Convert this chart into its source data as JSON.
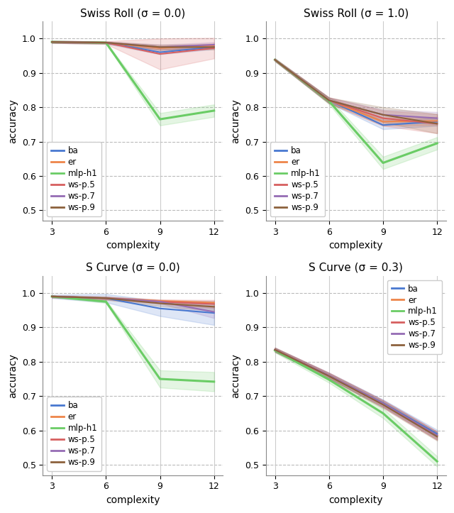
{
  "x": [
    3,
    6,
    9,
    12
  ],
  "plots": [
    {
      "title": "Swiss Roll (σ = 0.0)",
      "legend_loc": "lower left",
      "lines": {
        "ba": {
          "mean": [
            0.99,
            0.988,
            0.96,
            0.975
          ],
          "std": [
            0.003,
            0.003,
            0.006,
            0.006
          ]
        },
        "er": {
          "mean": [
            0.99,
            0.988,
            0.972,
            0.98
          ],
          "std": [
            0.003,
            0.003,
            0.006,
            0.006
          ]
        },
        "mlp-h1": {
          "mean": [
            0.99,
            0.988,
            0.765,
            0.79
          ],
          "std": [
            0.002,
            0.002,
            0.018,
            0.018
          ]
        },
        "ws-p.5": {
          "mean": [
            0.99,
            0.988,
            0.955,
            0.972
          ],
          "std": [
            0.003,
            0.004,
            0.045,
            0.03
          ]
        },
        "ws-p.7": {
          "mean": [
            0.99,
            0.988,
            0.975,
            0.982
          ],
          "std": [
            0.003,
            0.003,
            0.007,
            0.007
          ]
        },
        "ws-p.9": {
          "mean": [
            0.99,
            0.988,
            0.975,
            0.975
          ],
          "std": [
            0.003,
            0.003,
            0.007,
            0.007
          ]
        }
      },
      "ylim": [
        0.47,
        1.05
      ],
      "yticks": [
        0.5,
        0.6,
        0.7,
        0.8,
        0.9,
        1.0
      ]
    },
    {
      "title": "Swiss Roll (σ = 1.0)",
      "legend_loc": "lower left",
      "lines": {
        "ba": {
          "mean": [
            0.938,
            0.82,
            0.748,
            0.758
          ],
          "std": [
            0.003,
            0.008,
            0.012,
            0.012
          ]
        },
        "er": {
          "mean": [
            0.938,
            0.82,
            0.758,
            0.76
          ],
          "std": [
            0.003,
            0.008,
            0.012,
            0.012
          ]
        },
        "mlp-h1": {
          "mean": [
            0.938,
            0.818,
            0.638,
            0.695
          ],
          "std": [
            0.003,
            0.009,
            0.018,
            0.018
          ]
        },
        "ws-p.5": {
          "mean": [
            0.938,
            0.82,
            0.768,
            0.752
          ],
          "std": [
            0.004,
            0.009,
            0.022,
            0.028
          ]
        },
        "ws-p.7": {
          "mean": [
            0.938,
            0.82,
            0.778,
            0.768
          ],
          "std": [
            0.004,
            0.008,
            0.015,
            0.018
          ]
        },
        "ws-p.9": {
          "mean": [
            0.938,
            0.82,
            0.778,
            0.752
          ],
          "std": [
            0.004,
            0.008,
            0.022,
            0.028
          ]
        }
      },
      "ylim": [
        0.47,
        1.05
      ],
      "yticks": [
        0.5,
        0.6,
        0.7,
        0.8,
        0.9,
        1.0
      ]
    },
    {
      "title": "S Curve (σ = 0.0)",
      "legend_loc": "lower left",
      "lines": {
        "ba": {
          "mean": [
            0.99,
            0.985,
            0.955,
            0.942
          ],
          "std": [
            0.005,
            0.012,
            0.022,
            0.035
          ]
        },
        "er": {
          "mean": [
            0.99,
            0.985,
            0.977,
            0.972
          ],
          "std": [
            0.003,
            0.003,
            0.004,
            0.004
          ]
        },
        "mlp-h1": {
          "mean": [
            0.99,
            0.975,
            0.75,
            0.742
          ],
          "std": [
            0.002,
            0.004,
            0.025,
            0.028
          ]
        },
        "ws-p.5": {
          "mean": [
            0.99,
            0.985,
            0.975,
            0.968
          ],
          "std": [
            0.003,
            0.004,
            0.006,
            0.012
          ]
        },
        "ws-p.7": {
          "mean": [
            0.99,
            0.985,
            0.975,
            0.945
          ],
          "std": [
            0.003,
            0.003,
            0.005,
            0.018
          ]
        },
        "ws-p.9": {
          "mean": [
            0.99,
            0.985,
            0.97,
            0.96
          ],
          "std": [
            0.003,
            0.005,
            0.008,
            0.012
          ]
        }
      },
      "ylim": [
        0.47,
        1.05
      ],
      "yticks": [
        0.5,
        0.6,
        0.7,
        0.8,
        0.9,
        1.0
      ]
    },
    {
      "title": "S Curve (σ = 0.3)",
      "legend_loc": "upper right",
      "lines": {
        "ba": {
          "mean": [
            0.835,
            0.76,
            0.68,
            0.59
          ],
          "std": [
            0.006,
            0.008,
            0.01,
            0.012
          ]
        },
        "er": {
          "mean": [
            0.835,
            0.76,
            0.678,
            0.585
          ],
          "std": [
            0.006,
            0.008,
            0.01,
            0.012
          ]
        },
        "mlp-h1": {
          "mean": [
            0.833,
            0.748,
            0.65,
            0.51
          ],
          "std": [
            0.006,
            0.009,
            0.014,
            0.015
          ]
        },
        "ws-p.5": {
          "mean": [
            0.835,
            0.76,
            0.678,
            0.585
          ],
          "std": [
            0.006,
            0.008,
            0.01,
            0.012
          ]
        },
        "ws-p.7": {
          "mean": [
            0.835,
            0.76,
            0.678,
            0.585
          ],
          "std": [
            0.006,
            0.008,
            0.01,
            0.012
          ]
        },
        "ws-p.9": {
          "mean": [
            0.835,
            0.758,
            0.675,
            0.582
          ],
          "std": [
            0.006,
            0.008,
            0.01,
            0.012
          ]
        }
      },
      "ylim": [
        0.47,
        1.05
      ],
      "yticks": [
        0.5,
        0.6,
        0.7,
        0.8,
        0.9,
        1.0
      ]
    }
  ],
  "colors": {
    "ba": "#4878d0",
    "er": "#ee854a",
    "mlp-h1": "#6acc65",
    "ws-p.5": "#d65f5f",
    "ws-p.7": "#956cb4",
    "ws-p.9": "#8c613c"
  },
  "legend_order": [
    "ba",
    "er",
    "mlp-h1",
    "ws-p.5",
    "ws-p.7",
    "ws-p.9"
  ],
  "xlabel": "complexity",
  "ylabel": "accuracy",
  "xticks": [
    3,
    6,
    9,
    12
  ],
  "background_color": "#ffffff"
}
